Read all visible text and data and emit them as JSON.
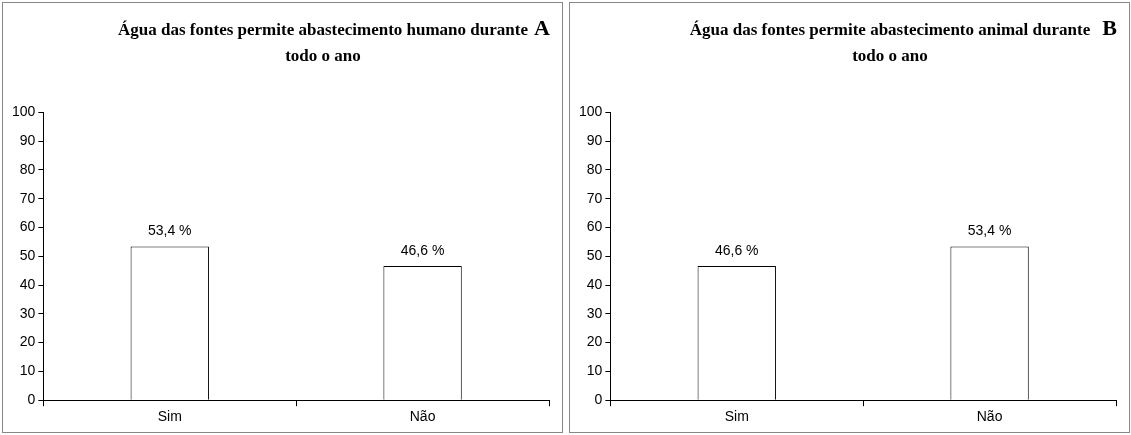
{
  "chart_data": [
    {
      "type": "bar",
      "title": "Água das fontes permite abastecimento humano durante todo o ano",
      "categories": [
        "Sim",
        "Não"
      ],
      "values": [
        53.4,
        46.6
      ],
      "value_labels": [
        "53,4 %",
        "46,6 %"
      ],
      "color": "#ffffff",
      "ylim": [
        0,
        100
      ],
      "yticks": [
        0,
        10,
        20,
        30,
        40,
        50,
        60,
        70,
        80,
        90,
        100
      ],
      "annotations": [
        "A"
      ],
      "grid": false,
      "legend": false
    },
    {
      "type": "bar",
      "title": "Água das fontes permite abastecimento animal durante todo o ano",
      "categories": [
        "Sim",
        "Não"
      ],
      "values": [
        46.6,
        53.4
      ],
      "value_labels": [
        "46,6 %",
        "53,4 %"
      ],
      "color": "#ffffff",
      "ylim": [
        0,
        100
      ],
      "yticks": [
        0,
        10,
        20,
        30,
        40,
        50,
        60,
        70,
        80,
        90,
        100
      ],
      "annotations": [
        "B"
      ],
      "grid": false,
      "legend": false
    }
  ]
}
